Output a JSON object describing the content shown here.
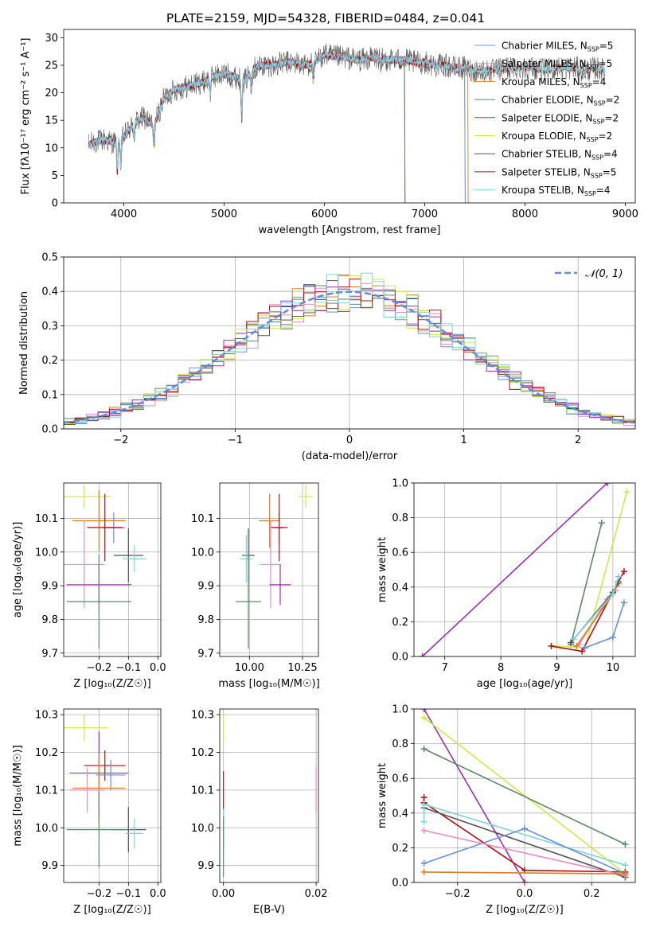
{
  "colors": {
    "Chabrier MILES": "#6a8fd8",
    "Salpeter MILES": "#e88cc0",
    "Kroupa MILES": "#e07b20",
    "Chabrier ELODIE": "#5c8a64",
    "Salpeter ELODIE": "#9b30b0",
    "Kroupa ELODIE": "#ccea48",
    "Chabrier STELIB": "#555555",
    "Salpeter STELIB": "#b01010",
    "Kroupa STELIB": "#7ed4dc"
  },
  "chart_data": [
    {
      "id": "spectrum",
      "type": "line",
      "title": "PLATE=2159, MJD=54328, FIBERID=0484, z=0.041",
      "xlabel": "wavelength [Angstrom, rest frame]",
      "ylabel": "Flux [fλ10⁻¹⁷ erg cm⁻² s⁻¹ A⁻¹]",
      "xlim": [
        3400,
        9100
      ],
      "ylim": [
        0,
        31.5
      ],
      "xticks": [
        4000,
        5000,
        6000,
        7000,
        8000,
        9000
      ],
      "yticks": [
        0,
        5,
        10,
        15,
        20,
        25,
        30
      ],
      "legend_position": "upper right",
      "legend": [
        {
          "label": "Chabrier MILES, N",
          "sub": "SSP",
          "suffix": "=5"
        },
        {
          "label": "Salpeter MILES, N",
          "sub": "SSP",
          "suffix": "=5"
        },
        {
          "label": "Kroupa MILES, N",
          "sub": "SSP",
          "suffix": "=4"
        },
        {
          "label": "Chabrier ELODIE, N",
          "sub": "SSP",
          "suffix": "=2"
        },
        {
          "label": "Salpeter ELODIE, N",
          "sub": "SSP",
          "suffix": "=2"
        },
        {
          "label": "Kroupa ELODIE, N",
          "sub": "SSP",
          "suffix": "=2"
        },
        {
          "label": "Chabrier STELIB, N",
          "sub": "SSP",
          "suffix": "=4"
        },
        {
          "label": "Salpeter STELIB, N",
          "sub": "SSP",
          "suffix": "=5"
        },
        {
          "label": "Kroupa STELIB, N",
          "sub": "SSP",
          "suffix": "=4"
        }
      ],
      "continuum": {
        "x": [
          3650,
          3700,
          3800,
          3900,
          4000,
          4100,
          4200,
          4300,
          4400,
          4500,
          4600,
          4700,
          4800,
          4900,
          5000,
          5100,
          5200,
          5300,
          5400,
          5500,
          5600,
          5700,
          5800,
          5900,
          6000,
          6100,
          6200,
          6300,
          6400,
          6500,
          6600,
          6700,
          6800,
          6900,
          7000,
          7100,
          7200,
          7300,
          7400,
          7500,
          7600,
          7700,
          7800,
          7900,
          8000,
          8100,
          8200,
          8300,
          8400,
          8500,
          8600,
          8700,
          8800
        ],
        "flux": [
          10.5,
          11.0,
          11.5,
          11.0,
          12.0,
          14.5,
          15.5,
          14.0,
          19.0,
          20.5,
          21.0,
          21.5,
          22.0,
          23.0,
          23.5,
          23.0,
          22.0,
          24.5,
          25.0,
          25.0,
          25.5,
          25.5,
          25.0,
          25.5,
          27.0,
          26.5,
          26.5,
          26.0,
          26.0,
          26.5,
          26.0,
          26.0,
          26.0,
          25.5,
          25.5,
          25.0,
          25.0,
          24.5,
          24.5,
          24.0,
          24.0,
          24.0,
          24.5,
          24.5,
          24.5,
          24.5,
          24.0,
          24.5,
          24.5,
          24.5,
          24.0,
          24.5,
          24.0
        ]
      },
      "absorption_features": [
        [
          3934,
          5.5
        ],
        [
          3969,
          5.0
        ],
        [
          4102,
          2.5
        ],
        [
          4300,
          3.5
        ],
        [
          4861,
          2.5
        ],
        [
          5175,
          6.0
        ],
        [
          5270,
          2.0
        ],
        [
          5890,
          3.0
        ],
        [
          6563,
          2.0
        ]
      ],
      "ranges": {
        "Chabrier MILES": [
          3650,
          7400
        ],
        "Salpeter MILES": [
          3650,
          7400
        ],
        "Kroupa MILES": [
          3650,
          7430
        ],
        "Chabrier ELODIE": [
          3650,
          6800
        ],
        "Salpeter ELODIE": [
          3650,
          6800
        ],
        "Kroupa ELODIE": [
          3900,
          6800
        ],
        "Chabrier STELIB": [
          3650,
          8800
        ],
        "Salpeter STELIB": [
          3650,
          8800
        ],
        "Kroupa STELIB": [
          3650,
          8800
        ]
      }
    },
    {
      "id": "residuals",
      "type": "step",
      "xlabel": "(data-model)/error",
      "ylabel": "Normed distribution",
      "xlim": [
        -2.5,
        2.5
      ],
      "ylim": [
        0,
        0.5
      ],
      "xticks": [
        -2,
        -1,
        0,
        1,
        2
      ],
      "xticklabels": [
        "−2",
        "−1",
        "0",
        "1",
        "2"
      ],
      "yticks": [
        0.0,
        0.1,
        0.2,
        0.3,
        0.4,
        0.5
      ],
      "grid": true,
      "legend": "𝒩(0, 1)",
      "bin_width": 0.1,
      "reference_curve": "gaussian mean 0 sigma 1"
    },
    {
      "id": "age-vs-z",
      "type": "errorbar",
      "xlabel": "Z [log₁₀(Z/Z☉)]",
      "ylabel": "age  [log₁₀(age/yr)]",
      "xlim": [
        -0.32,
        0.01
      ],
      "ylim": [
        9.69,
        10.205
      ],
      "xticks": [
        -0.2,
        -0.1,
        0.0
      ],
      "xticklabels": [
        "−0.2",
        "−0.1",
        "0.0"
      ],
      "yticks": [
        9.7,
        9.8,
        9.9,
        10.0,
        10.1
      ],
      "grid": true,
      "points": [
        {
          "model": "Kroupa ELODIE",
          "x": -0.25,
          "xerr": 0.09,
          "y": 10.165,
          "yerr": 0.035
        },
        {
          "model": "Kroupa MILES",
          "x": -0.2,
          "xerr": 0.09,
          "y": 10.093,
          "yerr": 0.09
        },
        {
          "model": "Chabrier MILES",
          "x": -0.15,
          "xerr": 0.04,
          "y": 10.072,
          "yerr": 0.045
        },
        {
          "model": "Salpeter STELIB",
          "x": -0.18,
          "xerr": 0.06,
          "y": 10.073,
          "yerr": 0.1
        },
        {
          "model": "Chabrier STELIB",
          "x": -0.1,
          "xerr": 0.05,
          "y": 9.99,
          "yerr": 0.08
        },
        {
          "model": "Kroupa STELIB",
          "x": -0.08,
          "xerr": 0.04,
          "y": 9.98,
          "yerr": 0.04
        },
        {
          "model": "Salpeter MILES",
          "x": -0.25,
          "xerr": 0.07,
          "y": 9.963,
          "yerr": 0.13
        },
        {
          "model": "Salpeter ELODIE",
          "x": -0.2,
          "xerr": 0.11,
          "y": 9.903,
          "yerr": 0.06
        },
        {
          "model": "Chabrier ELODIE",
          "x": -0.2,
          "xerr": 0.11,
          "y": 9.853,
          "yerr": 0.14
        }
      ]
    },
    {
      "id": "age-vs-mass",
      "type": "errorbar",
      "xlabel": "mass [log₁₀(M/M☉)]",
      "ylabel": "",
      "xlim": [
        9.86,
        10.325
      ],
      "ylim": [
        9.69,
        10.205
      ],
      "xticks": [
        10.0,
        10.25
      ],
      "xticklabels": [
        "10.00",
        "10.25"
      ],
      "yticks": [
        9.7,
        9.8,
        9.9,
        10.0,
        10.1
      ],
      "grid": true,
      "points": [
        {
          "model": "Kroupa ELODIE",
          "x": 10.265,
          "xerr": 0.035,
          "y": 10.165,
          "yerr": 0.035
        },
        {
          "model": "Kroupa MILES",
          "x": 10.095,
          "xerr": 0.05,
          "y": 10.093,
          "yerr": 0.08
        },
        {
          "model": "Chabrier MILES",
          "x": 10.14,
          "xerr": 0.02,
          "y": 10.072,
          "yerr": 0.045
        },
        {
          "model": "Salpeter STELIB",
          "x": 10.14,
          "xerr": 0.04,
          "y": 10.073,
          "yerr": 0.1
        },
        {
          "model": "Chabrier STELIB",
          "x": 9.995,
          "xerr": 0.03,
          "y": 9.99,
          "yerr": 0.08
        },
        {
          "model": "Kroupa STELIB",
          "x": 9.985,
          "xerr": 0.03,
          "y": 9.98,
          "yerr": 0.07
        },
        {
          "model": "Salpeter MILES",
          "x": 10.1,
          "xerr": 0.05,
          "y": 9.963,
          "yerr": 0.13
        },
        {
          "model": "Salpeter ELODIE",
          "x": 10.145,
          "xerr": 0.05,
          "y": 9.903,
          "yerr": 0.06
        },
        {
          "model": "Chabrier ELODIE",
          "x": 9.995,
          "xerr": 0.06,
          "y": 9.853,
          "yerr": 0.14
        }
      ]
    },
    {
      "id": "mass-weight-vs-age",
      "type": "line",
      "xlabel": "age  [log₁₀(age/yr)]",
      "ylabel": "mass weight",
      "xlim": [
        6.45,
        10.4
      ],
      "ylim": [
        0,
        1.0
      ],
      "xticks": [
        7,
        8,
        9,
        10
      ],
      "yticks": [
        0.0,
        0.2,
        0.4,
        0.6,
        0.8,
        1.0
      ],
      "grid": true,
      "series": [
        {
          "model": "Salpeter ELODIE",
          "x": [
            6.6,
            9.9
          ],
          "y": [
            0.0,
            1.0
          ]
        },
        {
          "model": "Chabrier ELODIE",
          "x": [
            9.25,
            9.8
          ],
          "y": [
            0.07,
            0.77
          ]
        },
        {
          "model": "Kroupa ELODIE",
          "x": [
            9.0,
            9.5,
            10.25
          ],
          "y": [
            0.06,
            0.05,
            0.95
          ]
        },
        {
          "model": "Salpeter STELIB",
          "x": [
            8.9,
            9.45,
            10.0,
            10.2
          ],
          "y": [
            0.06,
            0.03,
            0.37,
            0.49
          ]
        },
        {
          "model": "Chabrier MILES",
          "x": [
            9.5,
            10.0,
            10.2
          ],
          "y": [
            0.05,
            0.11,
            0.31
          ]
        },
        {
          "model": "Salpeter MILES",
          "x": [
            9.4,
            9.9,
            10.05
          ],
          "y": [
            0.07,
            0.33,
            0.38
          ]
        },
        {
          "model": "Kroupa MILES",
          "x": [
            9.35,
            10.0,
            10.1
          ],
          "y": [
            0.06,
            0.36,
            0.42
          ]
        },
        {
          "model": "Chabrier STELIB",
          "x": [
            9.25,
            10.0,
            10.1
          ],
          "y": [
            0.08,
            0.37,
            0.43
          ]
        },
        {
          "model": "Kroupa STELIB",
          "x": [
            9.3,
            10.0,
            10.1
          ],
          "y": [
            0.1,
            0.36,
            0.46
          ]
        }
      ]
    },
    {
      "id": "mass-vs-z",
      "type": "errorbar",
      "xlabel": "Z [log₁₀(Z/Z☉)]",
      "ylabel": "mass [log₁₀(M/M☉)]",
      "xlim": [
        -0.32,
        0.01
      ],
      "ylim": [
        9.855,
        10.315
      ],
      "xticks": [
        -0.2,
        -0.1,
        0.0
      ],
      "xticklabels": [
        "−0.2",
        "−0.1",
        "0.0"
      ],
      "yticks": [
        9.9,
        10.0,
        10.1,
        10.2,
        10.3
      ],
      "grid": true,
      "points": [
        {
          "model": "Kroupa ELODIE",
          "x": -0.25,
          "xerr": 0.08,
          "y": 10.265,
          "yerr": 0.035
        },
        {
          "model": "Salpeter STELIB",
          "x": -0.18,
          "xerr": 0.07,
          "y": 10.165,
          "yerr": 0.04
        },
        {
          "model": "Salpeter ELODIE",
          "x": -0.2,
          "xerr": 0.1,
          "y": 10.145,
          "yerr": 0.11
        },
        {
          "model": "Chabrier MILES",
          "x": -0.16,
          "xerr": 0.05,
          "y": 10.14,
          "yerr": 0.04
        },
        {
          "model": "Kroupa MILES",
          "x": -0.2,
          "xerr": 0.09,
          "y": 10.105,
          "yerr": 0.09
        },
        {
          "model": "Salpeter MILES",
          "x": -0.24,
          "xerr": 0.06,
          "y": 10.1,
          "yerr": 0.06
        },
        {
          "model": "Chabrier STELIB",
          "x": -0.1,
          "xerr": 0.06,
          "y": 9.995,
          "yerr": 0.06
        },
        {
          "model": "Chabrier ELODIE",
          "x": -0.2,
          "xerr": 0.11,
          "y": 9.995,
          "yerr": 0.1
        },
        {
          "model": "Kroupa STELIB",
          "x": -0.08,
          "xerr": 0.03,
          "y": 9.985,
          "yerr": 0.04
        }
      ]
    },
    {
      "id": "mass-vs-ebv",
      "type": "errorbar",
      "xlabel": "E(B-V)",
      "ylabel": "",
      "xlim": [
        -0.0008,
        0.0205
      ],
      "ylim": [
        9.855,
        10.315
      ],
      "xticks": [
        0.0,
        0.02
      ],
      "xticklabels": [
        "0.00",
        "0.02"
      ],
      "yticks": [
        9.9,
        10.0,
        10.1,
        10.2,
        10.3
      ],
      "grid": true,
      "points": [
        {
          "model": "Kroupa ELODIE",
          "x": 0.0,
          "xerr": 0.0,
          "y": 10.265,
          "yerr": 0.035
        },
        {
          "model": "Salpeter STELIB",
          "x": 0.0,
          "xerr": 0.0,
          "y": 10.1,
          "yerr": 0.05
        },
        {
          "model": "Chabrier MILES",
          "x": 0.0,
          "xerr": 0.0,
          "y": 10.0,
          "yerr": 0.05
        },
        {
          "model": "Kroupa STELIB",
          "x": 0.0,
          "xerr": 0.0,
          "y": 10.0,
          "yerr": 0.05
        },
        {
          "model": "Chabrier ELODIE",
          "x": 0.0,
          "xerr": 0.0,
          "y": 9.95,
          "yerr": 0.08
        },
        {
          "model": "Salpeter MILES",
          "x": 0.02,
          "xerr": 0.0,
          "y": 10.1,
          "yerr": 0.06
        }
      ]
    },
    {
      "id": "mass-weight-vs-z",
      "type": "line",
      "xlabel": "Z [log₁₀(Z/Z☉)]",
      "ylabel": "mass weight",
      "xlim": [
        -0.33,
        0.33
      ],
      "ylim": [
        0,
        1.0
      ],
      "xticks": [
        -0.2,
        0.0,
        0.2
      ],
      "xticklabels": [
        "−0.2",
        "0.0",
        "0.2"
      ],
      "yticks": [
        0.0,
        0.2,
        0.4,
        0.6,
        0.8,
        1.0
      ],
      "grid": true,
      "series": [
        {
          "model": "Salpeter ELODIE",
          "x": [
            -0.3,
            0.0
          ],
          "y": [
            1.0,
            0.0
          ]
        },
        {
          "model": "Kroupa ELODIE",
          "x": [
            -0.3,
            0.3
          ],
          "y": [
            0.95,
            0.05
          ]
        },
        {
          "model": "Chabrier ELODIE",
          "x": [
            -0.3,
            0.3
          ],
          "y": [
            0.77,
            0.22
          ]
        },
        {
          "model": "Salpeter STELIB",
          "x": [
            -0.3,
            -0.3,
            0.0,
            0.3
          ],
          "y": [
            0.49,
            0.46,
            0.07,
            0.06
          ]
        },
        {
          "model": "Chabrier STELIB",
          "x": [
            -0.3,
            0.3
          ],
          "y": [
            0.43,
            0.03
          ]
        },
        {
          "model": "Kroupa STELIB",
          "x": [
            -0.3,
            -0.3,
            0.3
          ],
          "y": [
            0.35,
            0.45,
            0.1
          ]
        },
        {
          "model": "Chabrier MILES",
          "x": [
            -0.3,
            0.0,
            0.3
          ],
          "y": [
            0.11,
            0.31,
            0.05
          ]
        },
        {
          "model": "Salpeter MILES",
          "x": [
            -0.3,
            0.3
          ],
          "y": [
            0.3,
            0.04
          ]
        },
        {
          "model": "Kroupa MILES",
          "x": [
            -0.3,
            0.3
          ],
          "y": [
            0.06,
            0.05
          ]
        }
      ]
    }
  ]
}
